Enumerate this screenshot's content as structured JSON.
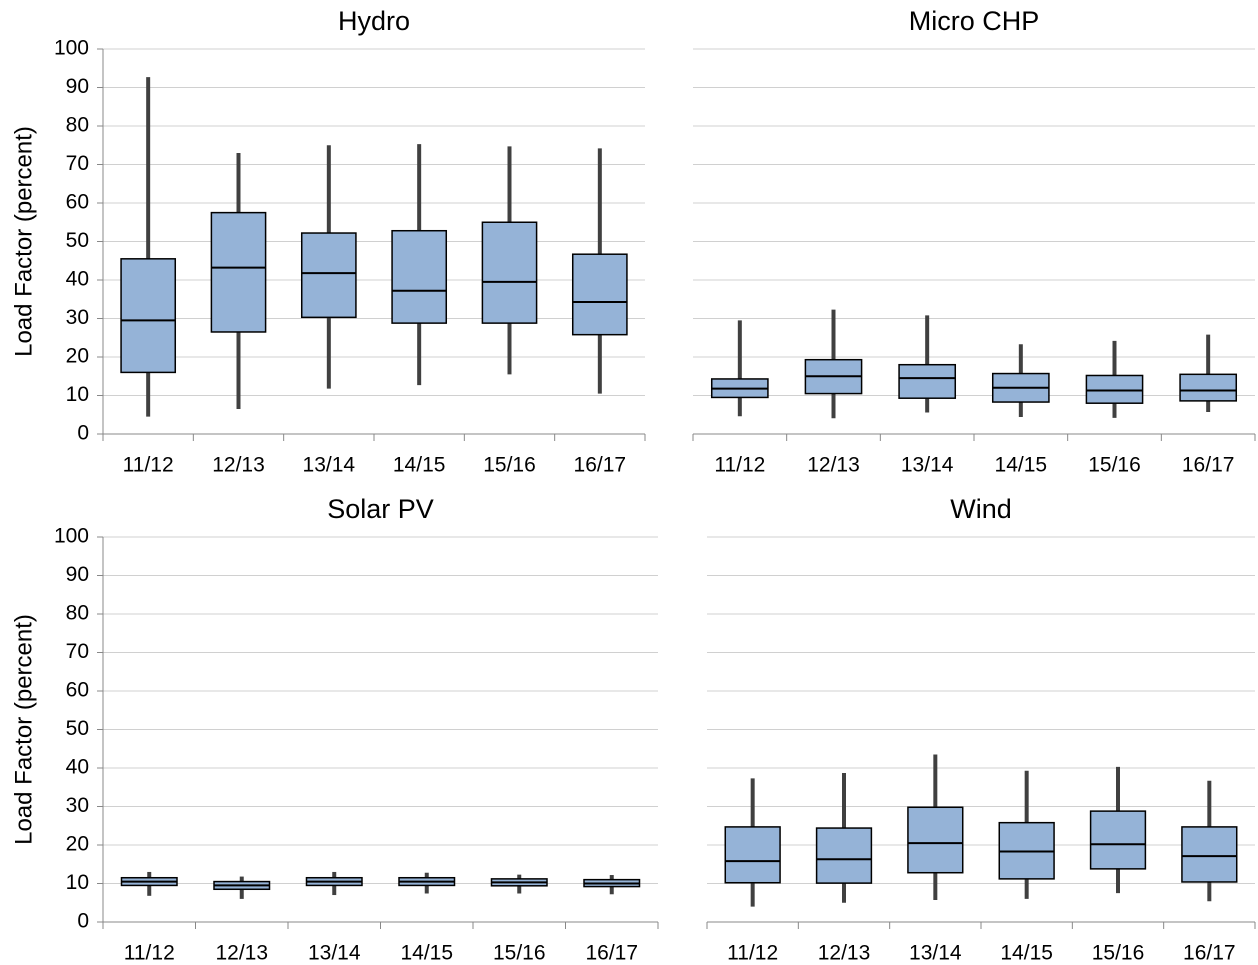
{
  "chart_data": [
    {
      "type": "box",
      "title": "Hydro",
      "y_label": "Load Factor (percent)",
      "categories": [
        "11/12",
        "12/13",
        "13/14",
        "14/15",
        "15/16",
        "16/17"
      ],
      "min": [
        4.5,
        6.5,
        11.8,
        12.7,
        15.5,
        10.5
      ],
      "q1": [
        16,
        26.5,
        30.3,
        28.8,
        28.8,
        25.8
      ],
      "median": [
        29.5,
        43.2,
        41.8,
        37.2,
        39.5,
        34.3
      ],
      "q3": [
        45.5,
        57.5,
        52.2,
        52.8,
        55,
        46.7
      ],
      "max": [
        92.7,
        73,
        75,
        75.3,
        74.7,
        74.2
      ],
      "color": "#95b3d7",
      "ylim": [
        0,
        100
      ],
      "yticks": [
        0,
        10,
        20,
        30,
        40,
        50,
        60,
        70,
        80,
        90,
        100
      ],
      "ytick_labels": true,
      "grid": true
    },
    {
      "type": "box",
      "title": "Micro CHP",
      "categories": [
        "11/12",
        "12/13",
        "13/14",
        "14/15",
        "15/16",
        "16/17"
      ],
      "min": [
        4.6,
        4.1,
        5.6,
        4.4,
        4.2,
        5.7
      ],
      "q1": [
        9.5,
        10.5,
        9.3,
        8.3,
        8,
        8.6
      ],
      "median": [
        11.8,
        15,
        14.5,
        12,
        11.3,
        11.3
      ],
      "q3": [
        14.3,
        19.3,
        18,
        15.7,
        15.2,
        15.5
      ],
      "max": [
        29.5,
        32.3,
        30.8,
        23.3,
        24.2,
        25.8
      ],
      "color": "#95b3d7",
      "ylim": [
        0,
        100
      ],
      "yticks": [
        0,
        10,
        20,
        30,
        40,
        50,
        60,
        70,
        80,
        90,
        100
      ],
      "ytick_labels": false,
      "grid": true
    },
    {
      "type": "box",
      "title": "Solar PV",
      "y_label": "Load Factor (percent)",
      "categories": [
        "11/12",
        "12/13",
        "13/14",
        "14/15",
        "15/16",
        "16/17"
      ],
      "min": [
        6.8,
        6,
        7,
        7.4,
        7.4,
        7.2
      ],
      "q1": [
        9.5,
        8.5,
        9.5,
        9.5,
        9.4,
        9.2
      ],
      "median": [
        10.5,
        9.5,
        10.5,
        10.5,
        10.3,
        10
      ],
      "q3": [
        11.5,
        10.5,
        11.5,
        11.5,
        11.2,
        11
      ],
      "max": [
        13,
        11.8,
        13,
        12.8,
        12.3,
        12.2
      ],
      "color": "#95b3d7",
      "ylim": [
        0,
        100
      ],
      "yticks": [
        0,
        10,
        20,
        30,
        40,
        50,
        60,
        70,
        80,
        90,
        100
      ],
      "ytick_labels": true,
      "grid": true
    },
    {
      "type": "box",
      "title": "Wind",
      "categories": [
        "11/12",
        "12/13",
        "13/14",
        "14/15",
        "15/16",
        "16/17"
      ],
      "min": [
        4,
        5,
        5.7,
        6,
        7.5,
        5.4
      ],
      "q1": [
        10.2,
        10.1,
        12.8,
        11.2,
        13.8,
        10.4
      ],
      "median": [
        15.8,
        16.3,
        20.5,
        18.3,
        20.2,
        17.1
      ],
      "q3": [
        24.7,
        24.4,
        29.8,
        25.8,
        28.8,
        24.7
      ],
      "max": [
        37.3,
        38.7,
        43.5,
        39.3,
        40.3,
        36.7
      ],
      "color": "#95b3d7",
      "ylim": [
        0,
        100
      ],
      "yticks": [
        0,
        10,
        20,
        30,
        40,
        50,
        60,
        70,
        80,
        90,
        100
      ],
      "ytick_labels": false,
      "grid": true
    }
  ]
}
